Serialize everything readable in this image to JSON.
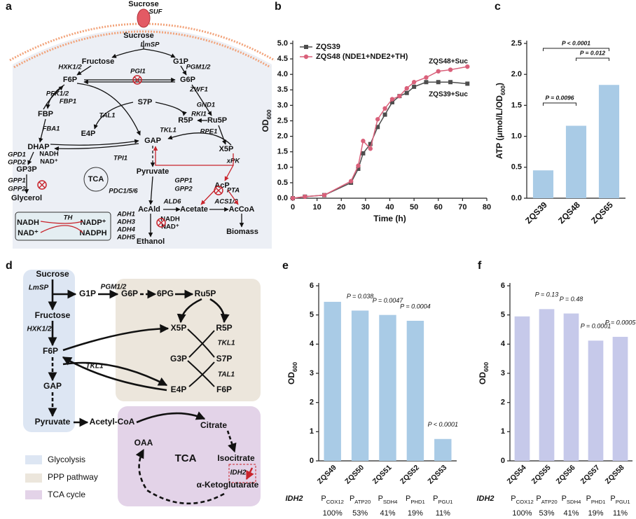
{
  "panel_labels": [
    "a",
    "b",
    "c",
    "d",
    "e",
    "f"
  ],
  "diagram_a": {
    "labels": [
      "Sucrose",
      "SUF",
      "Sucrose",
      "LmSP",
      "Fructose",
      "G1P",
      "HXK1/2",
      "PGM1/2",
      "F6P",
      "PGI1",
      "G6P",
      "ZWF1",
      "PFK1/2",
      "FBP1",
      "S7P",
      "GND1",
      "FBP",
      "RKI1",
      "TAL1",
      "R5P",
      "Ru5P",
      "FBA1",
      "TKL1",
      "RPE1",
      "E4P",
      "GAP",
      "DHAP",
      "X5P",
      "GPD1",
      "NADH",
      "GPD2",
      "NAD⁺",
      "TPI1",
      "xPK",
      "GP3P",
      "Pyruvate",
      "TCA",
      "GPP1",
      "GPP2",
      "GPP1",
      "GPP2",
      "AcP",
      "PDC1/5/6",
      "PTA",
      "Glycerol",
      "ALD6",
      "ACS1/2",
      "AcAld",
      "Acetate",
      "AcCoA",
      "ADH1",
      "ADH3",
      "ADH4",
      "ADH5",
      "NADH",
      "NAD⁺",
      "Biomass",
      "Ethanol",
      "TH",
      "NADH",
      "NAD⁺",
      "NADP⁺",
      "NADPH"
    ]
  },
  "diagram_d": {
    "labels": [
      "Sucrose",
      "LmSP",
      "G1P",
      "PGM1/2",
      "G6P",
      "6PG",
      "Ru5P",
      "Fructose",
      "HXK1/2",
      "X5P",
      "R5P",
      "TKL1",
      "F6P",
      "G3P",
      "S7P",
      "TKL1",
      "TAL1",
      "GAP",
      "E4P",
      "F6P",
      "Pyruvate",
      "Acetyl-CoA",
      "Citrate",
      "OAA",
      "TCA",
      "Isocitrate",
      "IDH2",
      "α-Ketoglutarate"
    ],
    "legend": [
      "Glycolysis",
      "PPP pathway",
      "TCA cycle"
    ]
  },
  "chart_data": [
    {
      "type": "line",
      "x_label": "Time (h)",
      "y_label": "OD600",
      "x": [
        0,
        5,
        13,
        24,
        27,
        29,
        32,
        35,
        38,
        41,
        44,
        47,
        50,
        55,
        60,
        65,
        72
      ],
      "series": [
        {
          "name": "ZQS39",
          "color": "#4d4d4d",
          "marker": "square",
          "values": [
            0,
            0.05,
            0.1,
            0.5,
            0.95,
            1.45,
            1.75,
            2.3,
            2.7,
            3.1,
            3.3,
            3.4,
            3.6,
            3.75,
            3.75,
            3.75,
            3.7
          ]
        },
        {
          "name": "ZQS48 (NDE1+NDE2+TH)",
          "color": "#d9607a",
          "marker": "circle",
          "values": [
            0,
            0.05,
            0.1,
            0.55,
            1.05,
            1.85,
            1.6,
            2.55,
            2.9,
            3.2,
            3.3,
            3.55,
            3.75,
            3.9,
            4.1,
            4.15,
            4.25
          ]
        }
      ],
      "annotations": [
        "ZQS48+Suc",
        "ZQS39+Suc"
      ],
      "xlim": [
        0,
        80
      ],
      "xticks": [
        0,
        10,
        20,
        30,
        40,
        50,
        60,
        70,
        80
      ],
      "ylim": [
        0,
        5
      ],
      "yticks": [
        {
          "value": 0,
          "label": "0.0"
        },
        0.5,
        {
          "value": 1,
          "label": "1.0"
        },
        1.5,
        {
          "value": 2,
          "label": "2.0"
        },
        2.5,
        {
          "value": 3,
          "label": "3.0"
        },
        3.5,
        {
          "value": 4,
          "label": "4.0"
        },
        4.5,
        {
          "value": 5,
          "label": "5.0"
        }
      ]
    },
    {
      "type": "bar",
      "y_label": "ATP (μmol/L/OD600)",
      "color": "#a9cbe6",
      "categories": [
        "ZQS39",
        "ZQS48",
        "ZQS65"
      ],
      "values": [
        0.45,
        1.17,
        1.83
      ],
      "annotations": [
        "P = 0.0096",
        "P = 0.012",
        "P < 0.0001"
      ],
      "ylim": [
        0,
        2.5
      ],
      "yticks": [
        {
          "value": 0,
          "label": "0.0"
        },
        0.5,
        {
          "value": 1,
          "label": "1.0"
        },
        1.5,
        {
          "value": 2,
          "label": "2.0"
        },
        2.5
      ]
    },
    {
      "type": "bar",
      "y_label": "OD600",
      "color": "#a9cbe6",
      "categories": [
        "ZQS49",
        "ZQS50",
        "ZQS51",
        "ZQS52",
        "ZQS53"
      ],
      "values": [
        5.45,
        5.15,
        5.0,
        4.8,
        0.75
      ],
      "value_annotations": [
        null,
        "P = 0.038",
        "P = 0.0047",
        "P = 0.0004",
        "P < 0.0001"
      ],
      "row_label": "IDH2",
      "promoters": [
        "PCOX12",
        "PATP20",
        "PSDH4",
        "PPHD1",
        "PPGU1"
      ],
      "percentages": [
        "100%",
        "53%",
        "41%",
        "19%",
        "11%"
      ],
      "ylim": [
        0,
        6
      ],
      "yticks": [
        0,
        1,
        2,
        3,
        4,
        5,
        6
      ]
    },
    {
      "type": "bar",
      "y_label": "OD600",
      "color": "#c6c9ea",
      "categories": [
        "ZQS54",
        "ZQS55",
        "ZQS56",
        "ZQS57",
        "ZQS58"
      ],
      "values": [
        4.95,
        5.2,
        5.05,
        4.12,
        4.25
      ],
      "value_annotations": [
        null,
        "P = 0.13",
        "P = 0.48",
        "P = 0.0001",
        "P = 0.0005"
      ],
      "row_label": "IDH2",
      "promoters": [
        "PCOX12",
        "PATP20",
        "PSDH4",
        "PPHD1",
        "PPGU1"
      ],
      "percentages": [
        "100%",
        "53%",
        "41%",
        "19%",
        "11%"
      ],
      "ylim": [
        0,
        6
      ],
      "yticks": [
        0,
        1,
        2,
        3,
        4,
        5,
        6
      ]
    }
  ]
}
